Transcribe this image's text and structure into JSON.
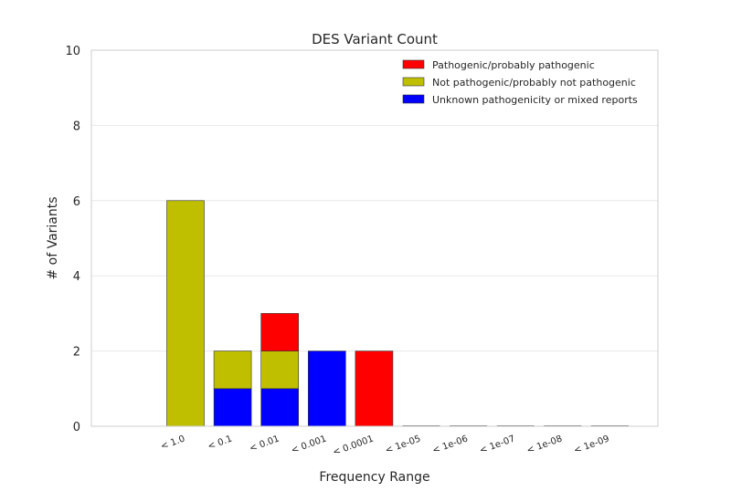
{
  "chart_data": {
    "type": "bar",
    "stacked": true,
    "title": "DES Variant Count",
    "xlabel": "Frequency Range",
    "ylabel": "# of Variants",
    "ylim": [
      0,
      10
    ],
    "yticks": [
      0,
      2,
      4,
      6,
      8,
      10
    ],
    "grid": true,
    "legend_position": "top-right",
    "categories": [
      "< 1.0",
      "< 0.1",
      "< 0.01",
      "< 0.001",
      "< 0.0001",
      "< 1e-05",
      "< 1e-06",
      "< 1e-07",
      "< 1e-08",
      "< 1e-09"
    ],
    "series": [
      {
        "name": "Unknown pathogenicity or mixed reports",
        "color": "#0000ff",
        "values": [
          0,
          1,
          1,
          2,
          0,
          0,
          0,
          0,
          0,
          0
        ]
      },
      {
        "name": "Not pathogenic/probably not pathogenic",
        "color": "#bfbf00",
        "values": [
          6,
          1,
          1,
          0,
          0,
          0,
          0,
          0,
          0,
          0
        ]
      },
      {
        "name": "Pathogenic/probably pathogenic",
        "color": "#ff0000",
        "values": [
          0,
          0,
          1,
          0,
          2,
          0,
          0,
          0,
          0,
          0
        ]
      }
    ],
    "legend_order": [
      2,
      1,
      0
    ]
  }
}
